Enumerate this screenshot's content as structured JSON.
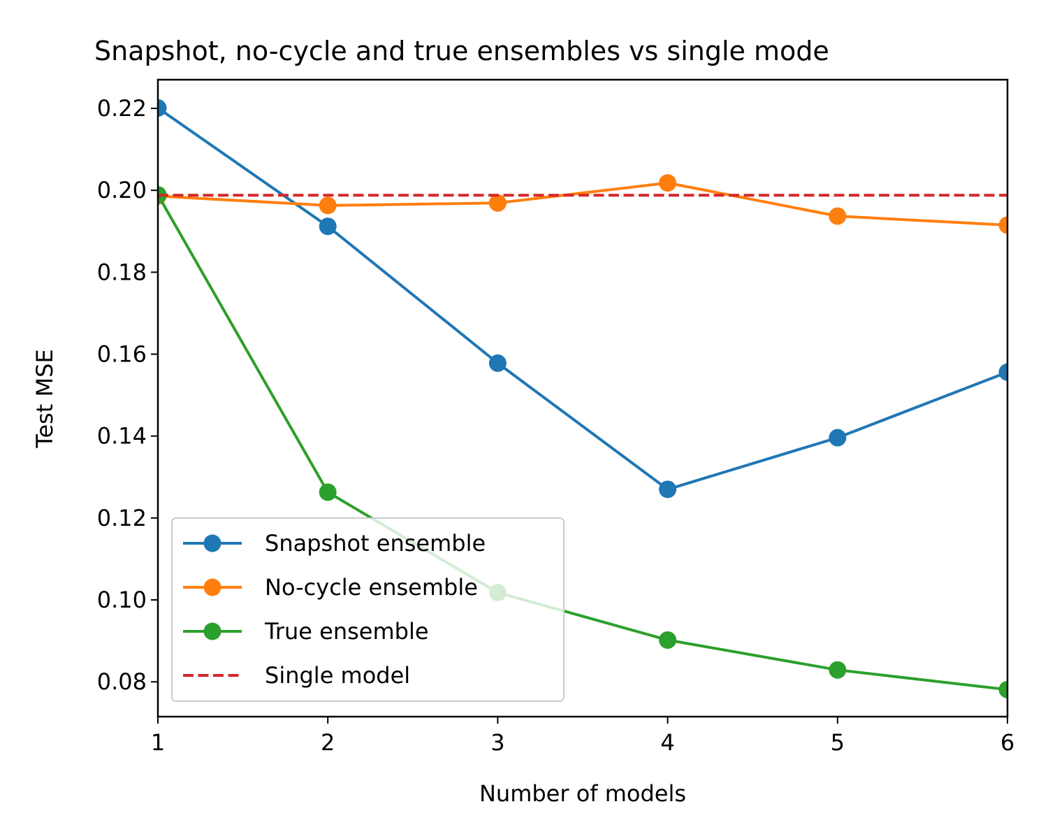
{
  "chart_data": {
    "type": "line",
    "title": "Snapshot, no-cycle and true ensembles vs single mode",
    "xlabel": "Number of models",
    "ylabel": "Test MSE",
    "x": [
      1,
      2,
      3,
      4,
      5,
      6
    ],
    "xlim": [
      1,
      6
    ],
    "ylim": [
      0.0715,
      0.227
    ],
    "xticks": [
      "1",
      "2",
      "3",
      "4",
      "5",
      "6"
    ],
    "yticks": [
      "0.08",
      "0.10",
      "0.12",
      "0.14",
      "0.16",
      "0.18",
      "0.20",
      "0.22"
    ],
    "grid": false,
    "legend_position": "lower-left",
    "series": [
      {
        "name": "Snapshot ensemble",
        "values": [
          0.2201,
          0.1912,
          0.1578,
          0.127,
          0.1396,
          0.1556
        ],
        "color": "#1f77b4",
        "style": "solid",
        "marker": "circle"
      },
      {
        "name": "No-cycle ensemble",
        "values": [
          0.1986,
          0.1963,
          0.1969,
          0.2018,
          0.1937,
          0.1915
        ],
        "color": "#ff7f0e",
        "style": "solid",
        "marker": "circle"
      },
      {
        "name": "True ensemble",
        "values": [
          0.1989,
          0.1263,
          0.1018,
          0.0902,
          0.0829,
          0.0781
        ],
        "color": "#2ca02c",
        "style": "solid",
        "marker": "circle"
      },
      {
        "name": "Single model",
        "values": [
          0.1988,
          0.1988,
          0.1988,
          0.1988,
          0.1988,
          0.1988
        ],
        "color": "#d62728",
        "style": "dashed",
        "marker": "none"
      }
    ]
  }
}
